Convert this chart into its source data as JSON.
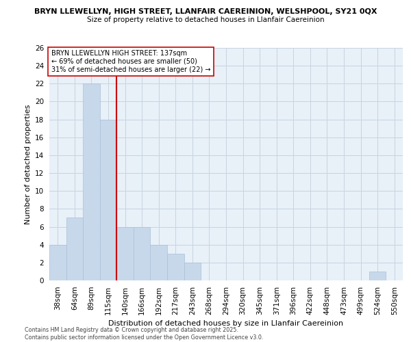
{
  "title1": "BRYN LLEWELLYN, HIGH STREET, LLANFAIR CAEREINION, WELSHPOOL, SY21 0QX",
  "title2": "Size of property relative to detached houses in Llanfair Caereinion",
  "xlabel": "Distribution of detached houses by size in Llanfair Caereinion",
  "ylabel": "Number of detached properties",
  "footnote1": "Contains HM Land Registry data © Crown copyright and database right 2025.",
  "footnote2": "Contains public sector information licensed under the Open Government Licence v3.0.",
  "bar_labels": [
    "38sqm",
    "64sqm",
    "89sqm",
    "115sqm",
    "140sqm",
    "166sqm",
    "192sqm",
    "217sqm",
    "243sqm",
    "268sqm",
    "294sqm",
    "320sqm",
    "345sqm",
    "371sqm",
    "396sqm",
    "422sqm",
    "448sqm",
    "473sqm",
    "499sqm",
    "524sqm",
    "550sqm"
  ],
  "bar_values": [
    4,
    7,
    22,
    18,
    6,
    6,
    4,
    3,
    2,
    0,
    0,
    0,
    0,
    0,
    0,
    0,
    0,
    0,
    0,
    1,
    0
  ],
  "bar_color": "#c8d8eb",
  "bar_edge_color": "#a8c0d8",
  "vline_pos": 3.5,
  "vline_color": "#cc0000",
  "annotation_line1": "BRYN LLEWELLYN HIGH STREET: 137sqm",
  "annotation_line2": "← 69% of detached houses are smaller (50)",
  "annotation_line3": "31% of semi-detached houses are larger (22) →",
  "ylim": [
    0,
    26
  ],
  "yticks": [
    0,
    2,
    4,
    6,
    8,
    10,
    12,
    14,
    16,
    18,
    20,
    22,
    24,
    26
  ],
  "grid_color": "#c8d4e0",
  "bg_color": "#e8f0f8"
}
